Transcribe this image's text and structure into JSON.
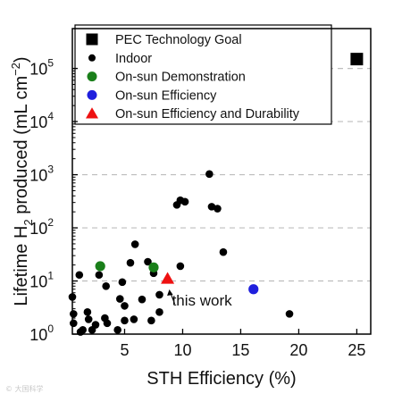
{
  "chart_data": {
    "type": "scatter",
    "xlabel": "STH Efficiency (%)",
    "ylabel_main": "Lifetime H",
    "ylabel_sub": "2",
    "ylabel_rest": " produced (mL cm",
    "ylabel_sup": "−2",
    "ylabel_close": ")",
    "xlim": [
      0.5,
      26.2
    ],
    "ylim_log10": [
      0,
      5.75
    ],
    "y_scale": "log",
    "grid": "horizontal dashed at decades",
    "x_ticks": [
      5,
      10,
      15,
      20,
      25
    ],
    "y_ticks": [
      {
        "base": "10",
        "exp": "0",
        "value": 1
      },
      {
        "base": "10",
        "exp": "1",
        "value": 10
      },
      {
        "base": "10",
        "exp": "2",
        "value": 100
      },
      {
        "base": "10",
        "exp": "3",
        "value": 1000
      },
      {
        "base": "10",
        "exp": "4",
        "value": 10000
      },
      {
        "base": "10",
        "exp": "5",
        "value": 100000
      }
    ],
    "legend_position": "top-left",
    "series": [
      {
        "name": "PEC Technology Goal",
        "marker": "square",
        "color": "#000000",
        "points": [
          [
            25,
            150000
          ]
        ]
      },
      {
        "name": "Indoor",
        "marker": "circle",
        "color": "#000000",
        "points": [
          [
            0.5,
            5
          ],
          [
            0.6,
            2.4
          ],
          [
            0.6,
            1.6
          ],
          [
            1.2,
            1.1
          ],
          [
            1.4,
            1.2
          ],
          [
            1.1,
            13
          ],
          [
            1.8,
            2.6
          ],
          [
            1.9,
            1.9
          ],
          [
            2.2,
            1.2
          ],
          [
            2.5,
            1.5
          ],
          [
            2.8,
            13
          ],
          [
            3.3,
            2.0
          ],
          [
            3.5,
            1.6
          ],
          [
            3.4,
            8
          ],
          [
            4.4,
            1.2
          ],
          [
            4.6,
            4.6
          ],
          [
            4.8,
            9.5
          ],
          [
            5.0,
            3.4
          ],
          [
            5.0,
            1.8
          ],
          [
            5.5,
            22
          ],
          [
            5.9,
            49
          ],
          [
            5.8,
            1.9
          ],
          [
            6.5,
            4.5
          ],
          [
            7.0,
            23
          ],
          [
            7.3,
            1.8
          ],
          [
            7.5,
            14
          ],
          [
            8.0,
            5.5
          ],
          [
            8.0,
            2.6
          ],
          [
            9.5,
            270
          ],
          [
            9.8,
            330
          ],
          [
            10.2,
            310
          ],
          [
            9.8,
            19
          ],
          [
            12.3,
            1030
          ],
          [
            12.5,
            250
          ],
          [
            13.0,
            230
          ],
          [
            13.5,
            35
          ],
          [
            19.2,
            2.4
          ]
        ]
      },
      {
        "name": "On-sun Demonstration",
        "marker": "circle",
        "color": "#1a7f1a",
        "points": [
          [
            2.9,
            19
          ],
          [
            7.5,
            18
          ]
        ]
      },
      {
        "name": "On-sun Efficiency",
        "marker": "circle",
        "color": "#1f1fdd",
        "points": [
          [
            16.1,
            7
          ]
        ]
      },
      {
        "name": "On-sun Efficiency and Durability",
        "marker": "triangle",
        "color": "#ee1111",
        "points": [
          [
            8.7,
            11
          ]
        ]
      }
    ],
    "annotations": [
      {
        "text": "this work",
        "x": 8.7,
        "y": 11
      }
    ]
  },
  "watermark": "© 大国科学"
}
